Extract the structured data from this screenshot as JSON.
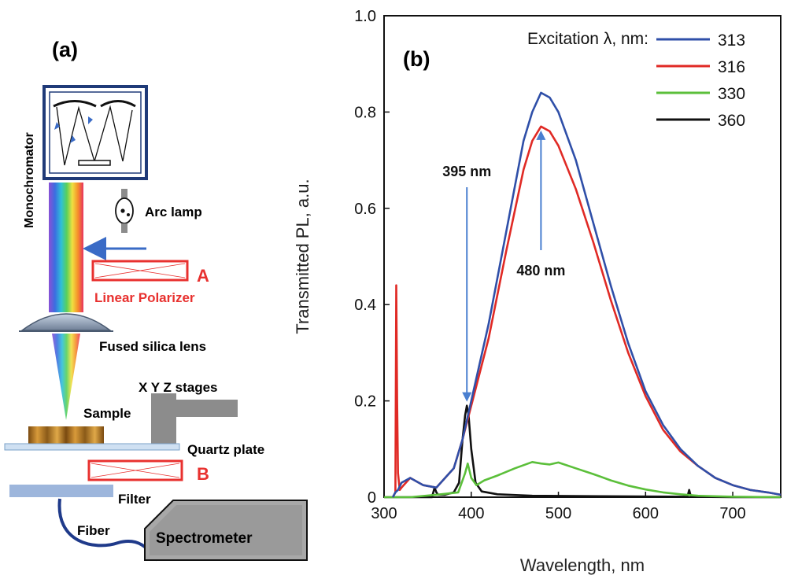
{
  "panel_a": {
    "label": "(a)",
    "monochromator": "Monochromator",
    "arc_lamp": "Arc lamp",
    "polarizer_a": "A",
    "linear_polarizer": "Linear Polarizer",
    "lens": "Fused silica lens",
    "stages": "X Y Z stages",
    "sample": "Sample",
    "quartz_plate": "Quartz plate",
    "polarizer_b": "B",
    "filter": "Filter",
    "fiber": "Fiber",
    "spectrometer": "Spectrometer",
    "colors": {
      "red": "#e8312f",
      "blue": "#3a6bc6",
      "navy": "#1f3a78",
      "gray": "#8c8c8c"
    }
  },
  "chart_data": {
    "type": "line",
    "panel_label": "(b)",
    "xlabel": "Wavelength, nm",
    "ylabel": "Transmitted PL, a.u.",
    "xlim": [
      300,
      755
    ],
    "ylim": [
      0,
      1.0
    ],
    "xticks": [
      300,
      400,
      500,
      600,
      700
    ],
    "yticks": [
      0,
      0.2,
      0.4,
      0.6,
      0.8,
      1.0
    ],
    "ytick_labels": [
      "0",
      "0.2",
      "0.4",
      "0.6",
      "0.8",
      "1.0"
    ],
    "legend_title": "Excitation λ, nm:",
    "legend_position": "top-right",
    "series": [
      {
        "name": "313",
        "color": "#2f4fa8",
        "x": [
          310,
          313,
          316,
          320,
          330,
          345,
          360,
          380,
          390,
          400,
          420,
          440,
          460,
          470,
          480,
          490,
          500,
          520,
          540,
          560,
          580,
          600,
          620,
          640,
          660,
          680,
          700,
          720,
          740,
          755
        ],
        "y": [
          0.0,
          0.01,
          0.015,
          0.03,
          0.04,
          0.025,
          0.02,
          0.06,
          0.12,
          0.2,
          0.36,
          0.55,
          0.74,
          0.8,
          0.84,
          0.83,
          0.8,
          0.7,
          0.57,
          0.44,
          0.32,
          0.22,
          0.15,
          0.1,
          0.065,
          0.04,
          0.025,
          0.015,
          0.01,
          0.005
        ]
      },
      {
        "name": "316",
        "color": "#e02a25",
        "x": [
          310,
          313,
          314,
          315,
          316,
          318,
          320,
          330,
          345,
          360,
          380,
          390,
          400,
          420,
          440,
          460,
          470,
          480,
          490,
          500,
          520,
          540,
          560,
          580,
          600,
          620,
          640,
          660,
          680,
          700,
          720,
          740,
          755
        ],
        "y": [
          0.0,
          0.01,
          0.44,
          0.2,
          0.05,
          0.015,
          0.02,
          0.04,
          0.025,
          0.02,
          0.06,
          0.12,
          0.19,
          0.33,
          0.51,
          0.68,
          0.74,
          0.77,
          0.76,
          0.73,
          0.64,
          0.53,
          0.41,
          0.3,
          0.21,
          0.14,
          0.095,
          0.065,
          0.04,
          0.025,
          0.015,
          0.01,
          0.005
        ]
      },
      {
        "name": "330",
        "color": "#5bbf3a",
        "x": [
          300,
          330,
          360,
          385,
          393,
          396,
          400,
          406,
          415,
          430,
          450,
          470,
          480,
          490,
          500,
          520,
          540,
          560,
          580,
          600,
          620,
          640,
          660,
          700,
          755
        ],
        "y": [
          0.0,
          0.0,
          0.005,
          0.01,
          0.05,
          0.07,
          0.04,
          0.025,
          0.035,
          0.045,
          0.06,
          0.073,
          0.07,
          0.068,
          0.072,
          0.06,
          0.048,
          0.035,
          0.024,
          0.016,
          0.01,
          0.006,
          0.003,
          0.001,
          0.0
        ]
      },
      {
        "name": "360",
        "color": "#111111",
        "x": [
          300,
          355,
          358,
          360,
          362,
          370,
          380,
          386,
          390,
          393,
          395,
          397,
          400,
          405,
          412,
          430,
          470,
          550,
          648,
          650,
          652,
          700,
          755
        ],
        "y": [
          0.0,
          0.0,
          0.02,
          0.01,
          0.005,
          0.005,
          0.01,
          0.03,
          0.12,
          0.17,
          0.19,
          0.17,
          0.1,
          0.03,
          0.012,
          0.006,
          0.003,
          0.002,
          0.001,
          0.015,
          0.001,
          0.0,
          0.0
        ]
      }
    ],
    "annotations": [
      {
        "text": "395 nm",
        "x": 395,
        "y_arrow_tip": 0.195,
        "direction": "down",
        "color": "#4a7fd0"
      },
      {
        "text": "480 nm",
        "x": 480,
        "y_arrow_tip": 0.765,
        "direction": "up",
        "color": "#4a7fd0"
      }
    ]
  }
}
